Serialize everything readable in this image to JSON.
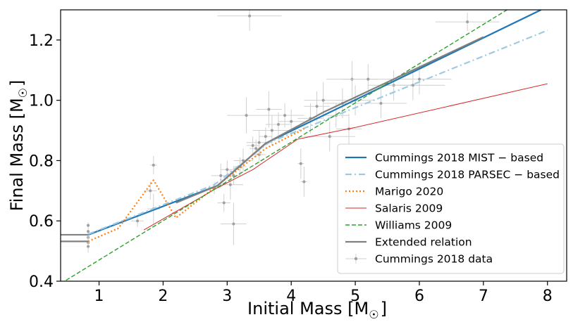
{
  "chart_data": {
    "type": "line",
    "xlabel": "Initial Mass [M",
    "xlabel_unit": "☉",
    "xlabel_close": "]",
    "ylabel": "Final Mass [M",
    "ylabel_unit": "☉",
    "ylabel_close": "]",
    "xlim": [
      0.4,
      8.3
    ],
    "ylim": [
      0.4,
      1.3
    ],
    "x_ticks": [
      {
        "value": 1,
        "label": "1"
      },
      {
        "value": 2,
        "label": "2"
      },
      {
        "value": 3,
        "label": "3"
      },
      {
        "value": 4,
        "label": "4"
      },
      {
        "value": 5,
        "label": "5"
      },
      {
        "value": 6,
        "label": "6"
      },
      {
        "value": 7,
        "label": "7"
      },
      {
        "value": 8,
        "label": "8"
      }
    ],
    "y_ticks": [
      {
        "value": 0.4,
        "label": "0.4"
      },
      {
        "value": 0.6,
        "label": "0.6"
      },
      {
        "value": 0.8,
        "label": "0.8"
      },
      {
        "value": 1.0,
        "label": "1.0"
      },
      {
        "value": 1.2,
        "label": "1.2"
      }
    ],
    "grid": false,
    "legend_position": "lower-right",
    "series": [
      {
        "name": "Cummings 2018 MIST − based",
        "color": "#1f77b4",
        "style": "solid",
        "width": 2.2,
        "points": [
          [
            0.83,
            0.554
          ],
          [
            2.85,
            0.717
          ],
          [
            3.6,
            0.857
          ],
          [
            7.9,
            1.3
          ]
        ]
      },
      {
        "name": "Cummings 2018 PARSEC − based",
        "color": "#9ecae1",
        "style": "dashdot",
        "width": 2.2,
        "points": [
          [
            0.83,
            0.556
          ],
          [
            2.8,
            0.72
          ],
          [
            3.65,
            0.86
          ],
          [
            8.0,
            1.232
          ]
        ]
      },
      {
        "name": "Marigo 2020",
        "color": "#ff7f0e",
        "style": "dotted",
        "width": 2.2,
        "points": [
          [
            0.83,
            0.532
          ],
          [
            1.3,
            0.575
          ],
          [
            1.85,
            0.735
          ],
          [
            2.2,
            0.61
          ],
          [
            2.8,
            0.71
          ],
          [
            3.6,
            0.84
          ],
          [
            4.2,
            0.905
          ]
        ]
      },
      {
        "name": "Salaris 2009",
        "color": "#d62728",
        "style": "solid",
        "width": 1.0,
        "points": [
          [
            1.7,
            0.57
          ],
          [
            2.85,
            0.71
          ],
          [
            3.4,
            0.77
          ],
          [
            4.1,
            0.871
          ],
          [
            5.0,
            0.91
          ],
          [
            8.0,
            1.055
          ]
        ]
      },
      {
        "name": "Williams 2009",
        "color": "#2ca02c",
        "style": "dashed",
        "width": 1.4,
        "points": [
          [
            0.4,
            0.392
          ],
          [
            7.6,
            1.33
          ]
        ]
      },
      {
        "name": "Extended relation",
        "color": "#808080",
        "style": "solid",
        "width": 2.2,
        "points": [
          [
            2.2,
            0.66
          ],
          [
            2.85,
            0.717
          ],
          [
            3.6,
            0.857
          ],
          [
            4.5,
            0.96
          ],
          [
            7.0,
            1.21
          ]
        ],
        "stubs": [
          {
            "x": [
              0.4,
              0.83
            ],
            "y": 0.554
          },
          {
            "x": [
              0.4,
              0.83
            ],
            "y": 0.532
          }
        ]
      }
    ],
    "scatter": {
      "name": "Cummings 2018 data",
      "color": "#a0a0a0",
      "points": [
        {
          "x": 0.83,
          "y": 0.585,
          "xe": 0.02,
          "ye": 0.01
        },
        {
          "x": 0.83,
          "y": 0.565,
          "xe": 0.02,
          "ye": 0.01
        },
        {
          "x": 0.83,
          "y": 0.545,
          "xe": 0.02,
          "ye": 0.015
        },
        {
          "x": 0.83,
          "y": 0.528,
          "xe": 0.02,
          "ye": 0.02
        },
        {
          "x": 0.83,
          "y": 0.515,
          "xe": 0.02,
          "ye": 0.02
        },
        {
          "x": 1.6,
          "y": 0.6,
          "xe": 0.1,
          "ye": 0.02
        },
        {
          "x": 1.8,
          "y": 0.7,
          "xe": 0.1,
          "ye": 0.03
        },
        {
          "x": 1.85,
          "y": 0.785,
          "xe": 0.05,
          "ye": 0.03
        },
        {
          "x": 1.85,
          "y": 0.64,
          "xe": 0.1,
          "ye": 0.05
        },
        {
          "x": 2.8,
          "y": 0.71,
          "xe": 0.1,
          "ye": 0.02
        },
        {
          "x": 2.9,
          "y": 0.75,
          "xe": 0.15,
          "ye": 0.04
        },
        {
          "x": 2.95,
          "y": 0.66,
          "xe": 0.1,
          "ye": 0.03
        },
        {
          "x": 3.0,
          "y": 0.77,
          "xe": 0.1,
          "ye": 0.03
        },
        {
          "x": 3.05,
          "y": 0.72,
          "xe": 0.2,
          "ye": 0.05
        },
        {
          "x": 3.1,
          "y": 0.75,
          "xe": 0.1,
          "ye": 0.03
        },
        {
          "x": 3.1,
          "y": 0.59,
          "xe": 0.2,
          "ye": 0.07
        },
        {
          "x": 3.2,
          "y": 0.78,
          "xe": 0.1,
          "ye": 0.03
        },
        {
          "x": 3.25,
          "y": 0.8,
          "xe": 0.15,
          "ye": 0.04
        },
        {
          "x": 3.3,
          "y": 0.95,
          "xe": 0.3,
          "ye": 0.06
        },
        {
          "x": 3.35,
          "y": 1.28,
          "xe": 0.5,
          "ye": 0.05
        },
        {
          "x": 3.4,
          "y": 0.85,
          "xe": 0.1,
          "ye": 0.03
        },
        {
          "x": 3.45,
          "y": 0.84,
          "xe": 0.1,
          "ye": 0.03
        },
        {
          "x": 3.5,
          "y": 0.82,
          "xe": 0.1,
          "ye": 0.03
        },
        {
          "x": 3.5,
          "y": 0.86,
          "xe": 0.2,
          "ye": 0.04
        },
        {
          "x": 3.6,
          "y": 0.88,
          "xe": 0.1,
          "ye": 0.03
        },
        {
          "x": 3.65,
          "y": 0.97,
          "xe": 0.2,
          "ye": 0.06
        },
        {
          "x": 3.7,
          "y": 0.9,
          "xe": 0.3,
          "ye": 0.05
        },
        {
          "x": 3.8,
          "y": 0.92,
          "xe": 0.2,
          "ye": 0.04
        },
        {
          "x": 3.9,
          "y": 0.95,
          "xe": 0.3,
          "ye": 0.04
        },
        {
          "x": 4.0,
          "y": 0.93,
          "xe": 0.2,
          "ye": 0.04
        },
        {
          "x": 4.15,
          "y": 0.79,
          "xe": 0.05,
          "ye": 0.05
        },
        {
          "x": 4.2,
          "y": 0.73,
          "xe": 0.05,
          "ye": 0.05
        },
        {
          "x": 4.3,
          "y": 0.94,
          "xe": 0.2,
          "ye": 0.05
        },
        {
          "x": 4.4,
          "y": 0.98,
          "xe": 0.2,
          "ye": 0.05
        },
        {
          "x": 4.5,
          "y": 1.0,
          "xe": 0.3,
          "ye": 0.06
        },
        {
          "x": 4.6,
          "y": 0.88,
          "xe": 0.4,
          "ye": 0.05
        },
        {
          "x": 4.7,
          "y": 0.95,
          "xe": 0.2,
          "ye": 0.04
        },
        {
          "x": 4.8,
          "y": 0.99,
          "xe": 0.3,
          "ye": 0.05
        },
        {
          "x": 4.9,
          "y": 0.905,
          "xe": 0.2,
          "ye": 0.05
        },
        {
          "x": 4.95,
          "y": 1.07,
          "xe": 0.4,
          "ye": 0.06
        },
        {
          "x": 5.0,
          "y": 1.0,
          "xe": 0.3,
          "ye": 0.05
        },
        {
          "x": 5.2,
          "y": 1.07,
          "xe": 0.4,
          "ye": 0.05
        },
        {
          "x": 5.4,
          "y": 0.99,
          "xe": 0.4,
          "ye": 0.05
        },
        {
          "x": 5.6,
          "y": 1.05,
          "xe": 0.4,
          "ye": 0.05
        },
        {
          "x": 5.9,
          "y": 1.05,
          "xe": 0.5,
          "ye": 0.05
        },
        {
          "x": 6.0,
          "y": 1.07,
          "xe": 0.5,
          "ye": 0.05
        },
        {
          "x": 6.75,
          "y": 1.26,
          "xe": 0.5,
          "ye": 0.03
        }
      ]
    }
  }
}
